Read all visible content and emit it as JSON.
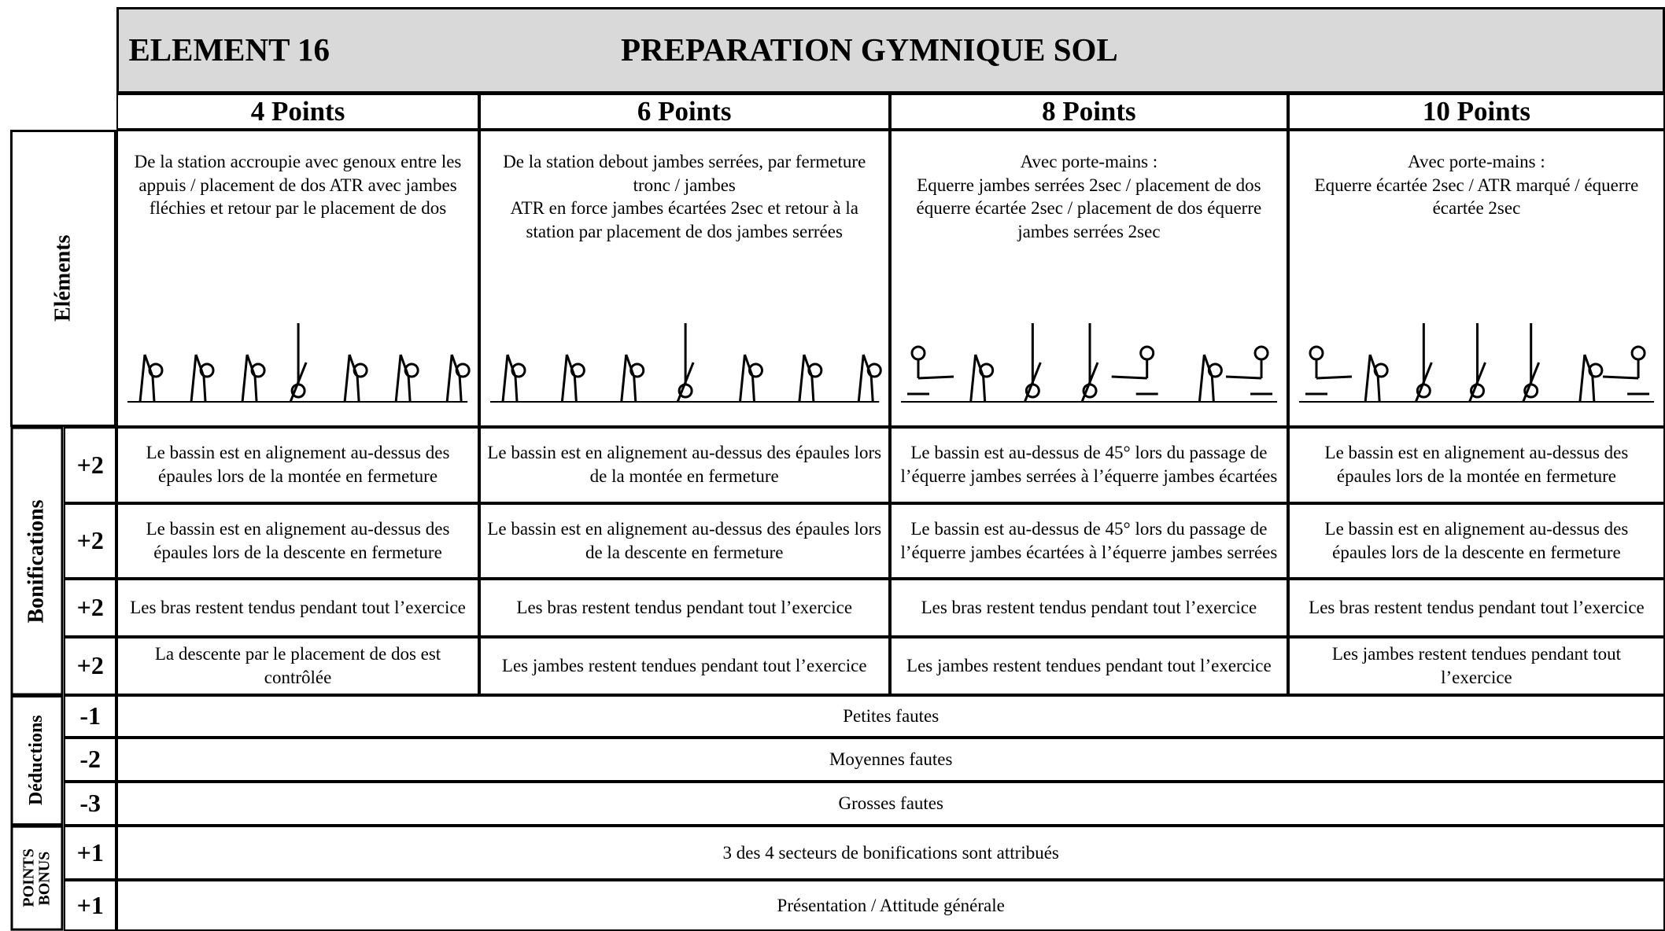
{
  "header": {
    "element": "ELEMENT 16",
    "title": "PREPARATION GYMNIQUE SOL"
  },
  "columns": [
    "4 Points",
    "6 Points",
    "8 Points",
    "10 Points"
  ],
  "elements": {
    "label": "Eléments",
    "descriptions": [
      "De la station accroupie avec genoux entre les appuis / placement de dos ATR avec jambes fléchies et retour par le placement de dos",
      "De la station debout jambes serrées, par fermeture tronc / jambes\nATR en force jambes écartées 2sec et retour à la station par placement de dos jambes serrées",
      "Avec porte-mains :\nEquerre jambes serrées 2sec / placement de dos équerre écartée 2sec / placement de dos équerre jambes serrées 2sec",
      "Avec porte-mains :\nEquerre écartée 2sec / ATR marqué / équerre écartée 2sec"
    ]
  },
  "bonifications": {
    "label": "Bonifications",
    "rows": [
      {
        "points": "+2",
        "cells": [
          "Le bassin est en alignement au-dessus des épaules lors de la montée en fermeture",
          "Le bassin est en alignement au-dessus des épaules lors de la montée en fermeture",
          "Le bassin est au-dessus de 45° lors du passage de l’équerre jambes serrées à l’équerre jambes écartées",
          "Le bassin est en alignement au-dessus des épaules lors de la montée en fermeture"
        ]
      },
      {
        "points": "+2",
        "cells": [
          "Le bassin est en alignement au-dessus des épaules lors de la descente en fermeture",
          "Le bassin est en alignement au-dessus des épaules lors de la descente en fermeture",
          "Le bassin est au-dessus de 45° lors du passage de l’équerre jambes écartées à l’équerre jambes serrées",
          "Le bassin est en alignement au-dessus des épaules lors de la descente en fermeture"
        ]
      },
      {
        "points": "+2",
        "cells": [
          "Les bras restent tendus pendant tout l’exercice",
          "Les bras restent tendus pendant tout l’exercice",
          "Les bras restent tendus pendant tout l’exercice",
          "Les bras restent tendus pendant tout l’exercice"
        ]
      },
      {
        "points": "+2",
        "cells": [
          "La descente par le placement de dos est contrôlée",
          "Les jambes restent tendues pendant tout l’exercice",
          "Les jambes restent tendues pendant tout l’exercice",
          "Les jambes restent tendues pendant tout l’exercice"
        ]
      }
    ]
  },
  "deductions": {
    "label": "Déductions",
    "rows": [
      {
        "points": "-1",
        "text": "Petites fautes"
      },
      {
        "points": "-2",
        "text": "Moyennes fautes"
      },
      {
        "points": "-3",
        "text": "Grosses fautes"
      }
    ]
  },
  "bonus": {
    "label": "POINTS\nBONUS",
    "rows": [
      {
        "points": "+1",
        "text": "3 des 4 secteurs de bonifications sont attribués"
      },
      {
        "points": "+1",
        "text": "Présentation / Attitude générale"
      }
    ]
  }
}
